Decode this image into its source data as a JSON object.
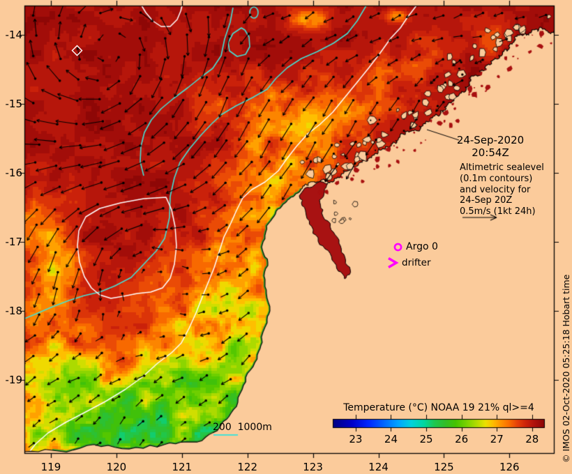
{
  "title_block": {
    "date": "24-Sep-2020",
    "time": "20:54Z",
    "info_lines": [
      "Altimetric sealevel",
      "(0.1m contours)",
      "and velocity for",
      "24-Sep 20Z",
      "0.5m/s (1kt 24h)"
    ]
  },
  "markers": {
    "argo_label": "Argo 0",
    "drifter_label": "drifter",
    "argo_symbol": "magenta-open-circle",
    "drifter_symbol": "magenta-chevron-right",
    "eddy_symbol": "white-open-diamond"
  },
  "scalebar": {
    "label": "200  1000m"
  },
  "colorbar": {
    "title": "Temperature (°C) NOAA 19 21% ql>=4",
    "tick_labels": [
      "23",
      "24",
      "25",
      "26",
      "27",
      "28"
    ],
    "min": 22.35,
    "max": 28.36,
    "stops": [
      [
        0,
        "#000082"
      ],
      [
        0.09,
        "#0000C8"
      ],
      [
        0.17,
        "#0028FF"
      ],
      [
        0.25,
        "#006EFF"
      ],
      [
        0.31,
        "#00A5FF"
      ],
      [
        0.37,
        "#00D2DC"
      ],
      [
        0.43,
        "#00D7A0"
      ],
      [
        0.48,
        "#1EC850"
      ],
      [
        0.53,
        "#32BE28"
      ],
      [
        0.58,
        "#46C300"
      ],
      [
        0.63,
        "#78D200"
      ],
      [
        0.68,
        "#B4DC00"
      ],
      [
        0.72,
        "#EBE100"
      ],
      [
        0.755,
        "#FFBE00"
      ],
      [
        0.79,
        "#FF9600"
      ],
      [
        0.83,
        "#FA6E00"
      ],
      [
        0.87,
        "#E64108"
      ],
      [
        0.91,
        "#CD230A"
      ],
      [
        0.95,
        "#AF120C"
      ],
      [
        1,
        "#8A0606"
      ]
    ]
  },
  "axis": {
    "lon_labels": [
      "119",
      "120",
      "121",
      "122",
      "123",
      "124",
      "125",
      "126"
    ],
    "lat_labels": [
      "-14",
      "-15",
      "-16",
      "-17",
      "-18",
      "-19"
    ]
  },
  "credit": "© IMOS 02-Oct-2020 05:25:18 Hobart time",
  "colors": {
    "land": "#FBCB9B",
    "ocean_hot": "#AA100E",
    "contour_ssh": "#FFFFFF",
    "contour_bathy": "#45E0D5",
    "coast_fringe": "#2FA32F",
    "arrow": "#000000",
    "marker": "#FF00FF",
    "text": "#000000"
  }
}
